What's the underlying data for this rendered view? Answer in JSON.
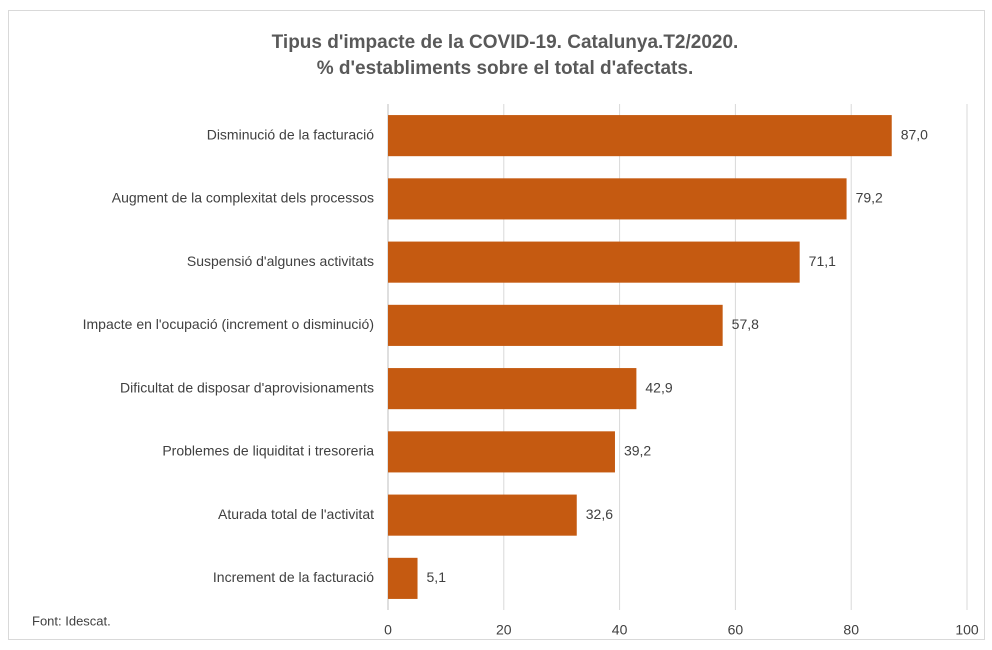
{
  "chart_data": {
    "type": "bar",
    "orientation": "horizontal",
    "title": "Tipus d'impacte de la COVID-19. Catalunya.T2/2020.",
    "subtitle": "% d'establiments sobre el total d'afectats.",
    "categories": [
      "Disminució de la facturació",
      "Augment de la complexitat dels processos",
      "Suspensió d'algunes activitats",
      "Impacte en l'ocupació (increment o disminució)",
      "Dificultat de disposar d'aprovisionaments",
      "Problemes de liquiditat i tresoreria",
      "Aturada total de l'activitat",
      "Increment de la facturació"
    ],
    "values": [
      87.0,
      79.2,
      71.1,
      57.8,
      42.9,
      39.2,
      32.6,
      5.1
    ],
    "value_labels": [
      "87,0",
      "79,2",
      "71,1",
      "57,8",
      "42,9",
      "39,2",
      "32,6",
      "5,1"
    ],
    "color": "#c55a11",
    "xlim": [
      0,
      100
    ],
    "xticks": [
      0,
      20,
      40,
      60,
      80,
      100
    ],
    "grid": true,
    "source": "Font: Idescat."
  }
}
